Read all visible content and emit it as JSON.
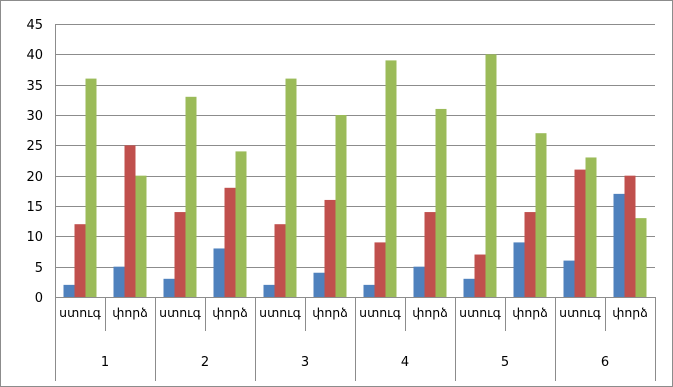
{
  "chart_data": {
    "type": "bar",
    "title": "",
    "xlabel": "",
    "ylabel": "",
    "ylim": [
      0,
      45
    ],
    "y_ticks": [
      0,
      5,
      10,
      15,
      20,
      25,
      30,
      35,
      40,
      45
    ],
    "grid": true,
    "legend": "none",
    "groups": [
      "1",
      "2",
      "3",
      "4",
      "5",
      "6"
    ],
    "categories": [
      "ստուգ",
      "փորձ",
      "ստուգ",
      "փորձ",
      "ստուգ",
      "փորձ",
      "ստուգ",
      "փորձ",
      "ստուգ",
      "փորձ",
      "ստուգ",
      "փորձ"
    ],
    "series": [
      {
        "color": "#4f81bd",
        "values": [
          2,
          5,
          3,
          8,
          2,
          4,
          2,
          5,
          3,
          9,
          6,
          17
        ]
      },
      {
        "color": "#c0504d",
        "values": [
          12,
          25,
          14,
          18,
          12,
          16,
          9,
          14,
          7,
          14,
          21,
          20
        ]
      },
      {
        "color": "#9bbb59",
        "values": [
          36,
          20,
          33,
          24,
          36,
          30,
          39,
          31,
          40,
          27,
          23,
          13
        ]
      }
    ]
  }
}
